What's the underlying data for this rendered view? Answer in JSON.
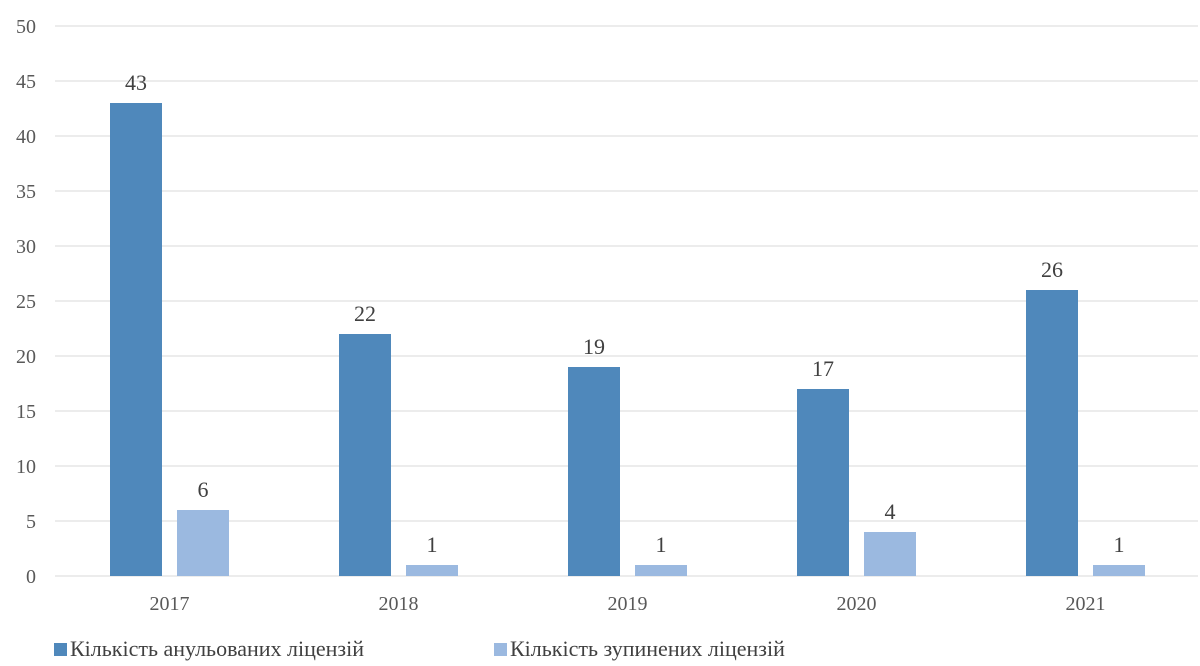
{
  "chart_data": {
    "type": "bar",
    "categories": [
      "2017",
      "2018",
      "2019",
      "2020",
      "2021"
    ],
    "series": [
      {
        "name": "Кількість анульованих ліцензій",
        "values": [
          43,
          22,
          19,
          17,
          26
        ],
        "color": "#4f88bb"
      },
      {
        "name": "Кількість зупинених ліцензій",
        "values": [
          6,
          1,
          1,
          4,
          1
        ],
        "color": "#9bb9e0"
      }
    ],
    "ylim": [
      0,
      50
    ],
    "yticks": [
      0,
      5,
      10,
      15,
      20,
      25,
      30,
      35,
      40,
      45,
      50
    ],
    "grid": true,
    "legend": "bottom-left",
    "data_labels": true,
    "title": "",
    "xlabel": "",
    "ylabel": ""
  }
}
